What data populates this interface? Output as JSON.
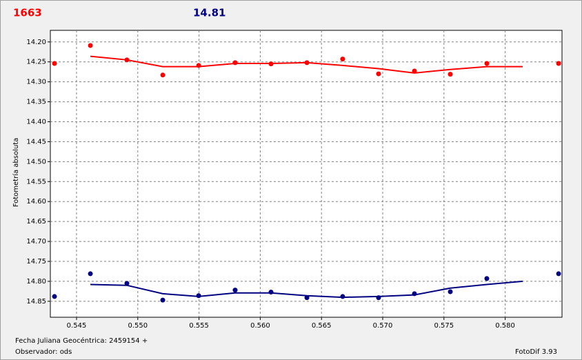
{
  "chart_data": {
    "type": "scatter",
    "header_left": "1663",
    "header_right": "14.81",
    "ylabel": "Fotometría absoluta",
    "footer_left_1": "Fecha Juliana Geocéntrica: 2459154 +",
    "footer_left_2": "Observador: ods",
    "footer_right": "FotoDif 3.93",
    "xlim": [
      0.54286,
      0.58464
    ],
    "ylim": [
      14.171,
      14.89
    ],
    "y_inverted": true,
    "grid": true,
    "xticks": [
      0.545,
      {
        "value": 0.55,
        "label": "0.550"
      },
      0.555,
      {
        "value": 0.56,
        "label": "0.560"
      },
      0.565,
      {
        "value": 0.57,
        "label": "0.570"
      },
      0.575,
      {
        "value": 0.58,
        "label": "0.580"
      }
    ],
    "yticks": [
      {
        "value": 14.2,
        "label": "14.20"
      },
      14.25,
      {
        "value": 14.3,
        "label": "14.30"
      },
      14.35,
      {
        "value": 14.4,
        "label": "14.40"
      },
      14.45,
      {
        "value": 14.5,
        "label": "14.50"
      },
      14.55,
      {
        "value": 14.6,
        "label": "14.60"
      },
      14.65,
      {
        "value": 14.7,
        "label": "14.70"
      },
      14.75,
      {
        "value": 14.8,
        "label": "14.80"
      },
      14.85
    ],
    "series": [
      {
        "color": "#ff0000",
        "kind": "points",
        "x": [
          0.5432,
          0.54613,
          0.54911,
          0.55204,
          0.55497,
          0.55795,
          0.56088,
          0.56381,
          0.56673,
          0.56966,
          0.57259,
          0.57552,
          0.5785,
          0.58436
        ],
        "values": [
          14.254,
          14.209,
          14.245,
          14.283,
          14.259,
          14.252,
          14.255,
          14.252,
          14.243,
          14.28,
          14.273,
          14.281,
          14.254,
          14.254
        ]
      },
      {
        "color": "#ff0000",
        "kind": "line",
        "x": [
          0.54613,
          0.54911,
          0.55204,
          0.55497,
          0.55795,
          0.56088,
          0.56381,
          0.56673,
          0.56966,
          0.57259,
          0.57552,
          0.5785,
          0.58143
        ],
        "values": [
          14.236,
          14.245,
          14.262,
          14.262,
          14.254,
          14.254,
          14.252,
          14.259,
          14.267,
          14.278,
          14.269,
          14.262,
          14.262
        ]
      },
      {
        "color": "#000080",
        "kind": "points",
        "x": [
          0.5432,
          0.54613,
          0.54911,
          0.55204,
          0.55497,
          0.55795,
          0.56088,
          0.56381,
          0.56673,
          0.56966,
          0.57259,
          0.57552,
          0.5785,
          0.58436
        ],
        "values": [
          14.838,
          14.781,
          14.805,
          14.847,
          14.836,
          14.822,
          14.827,
          14.841,
          14.838,
          14.841,
          14.831,
          14.826,
          14.793,
          14.781
        ]
      },
      {
        "color": "#000080",
        "kind": "line",
        "x": [
          0.54613,
          0.54911,
          0.55204,
          0.55497,
          0.55795,
          0.56088,
          0.56381,
          0.56673,
          0.56966,
          0.57259,
          0.57552,
          0.5785,
          0.58143
        ],
        "values": [
          14.808,
          14.81,
          14.831,
          14.838,
          14.829,
          14.829,
          14.836,
          14.84,
          14.838,
          14.834,
          14.817,
          14.808,
          14.8
        ]
      }
    ]
  }
}
